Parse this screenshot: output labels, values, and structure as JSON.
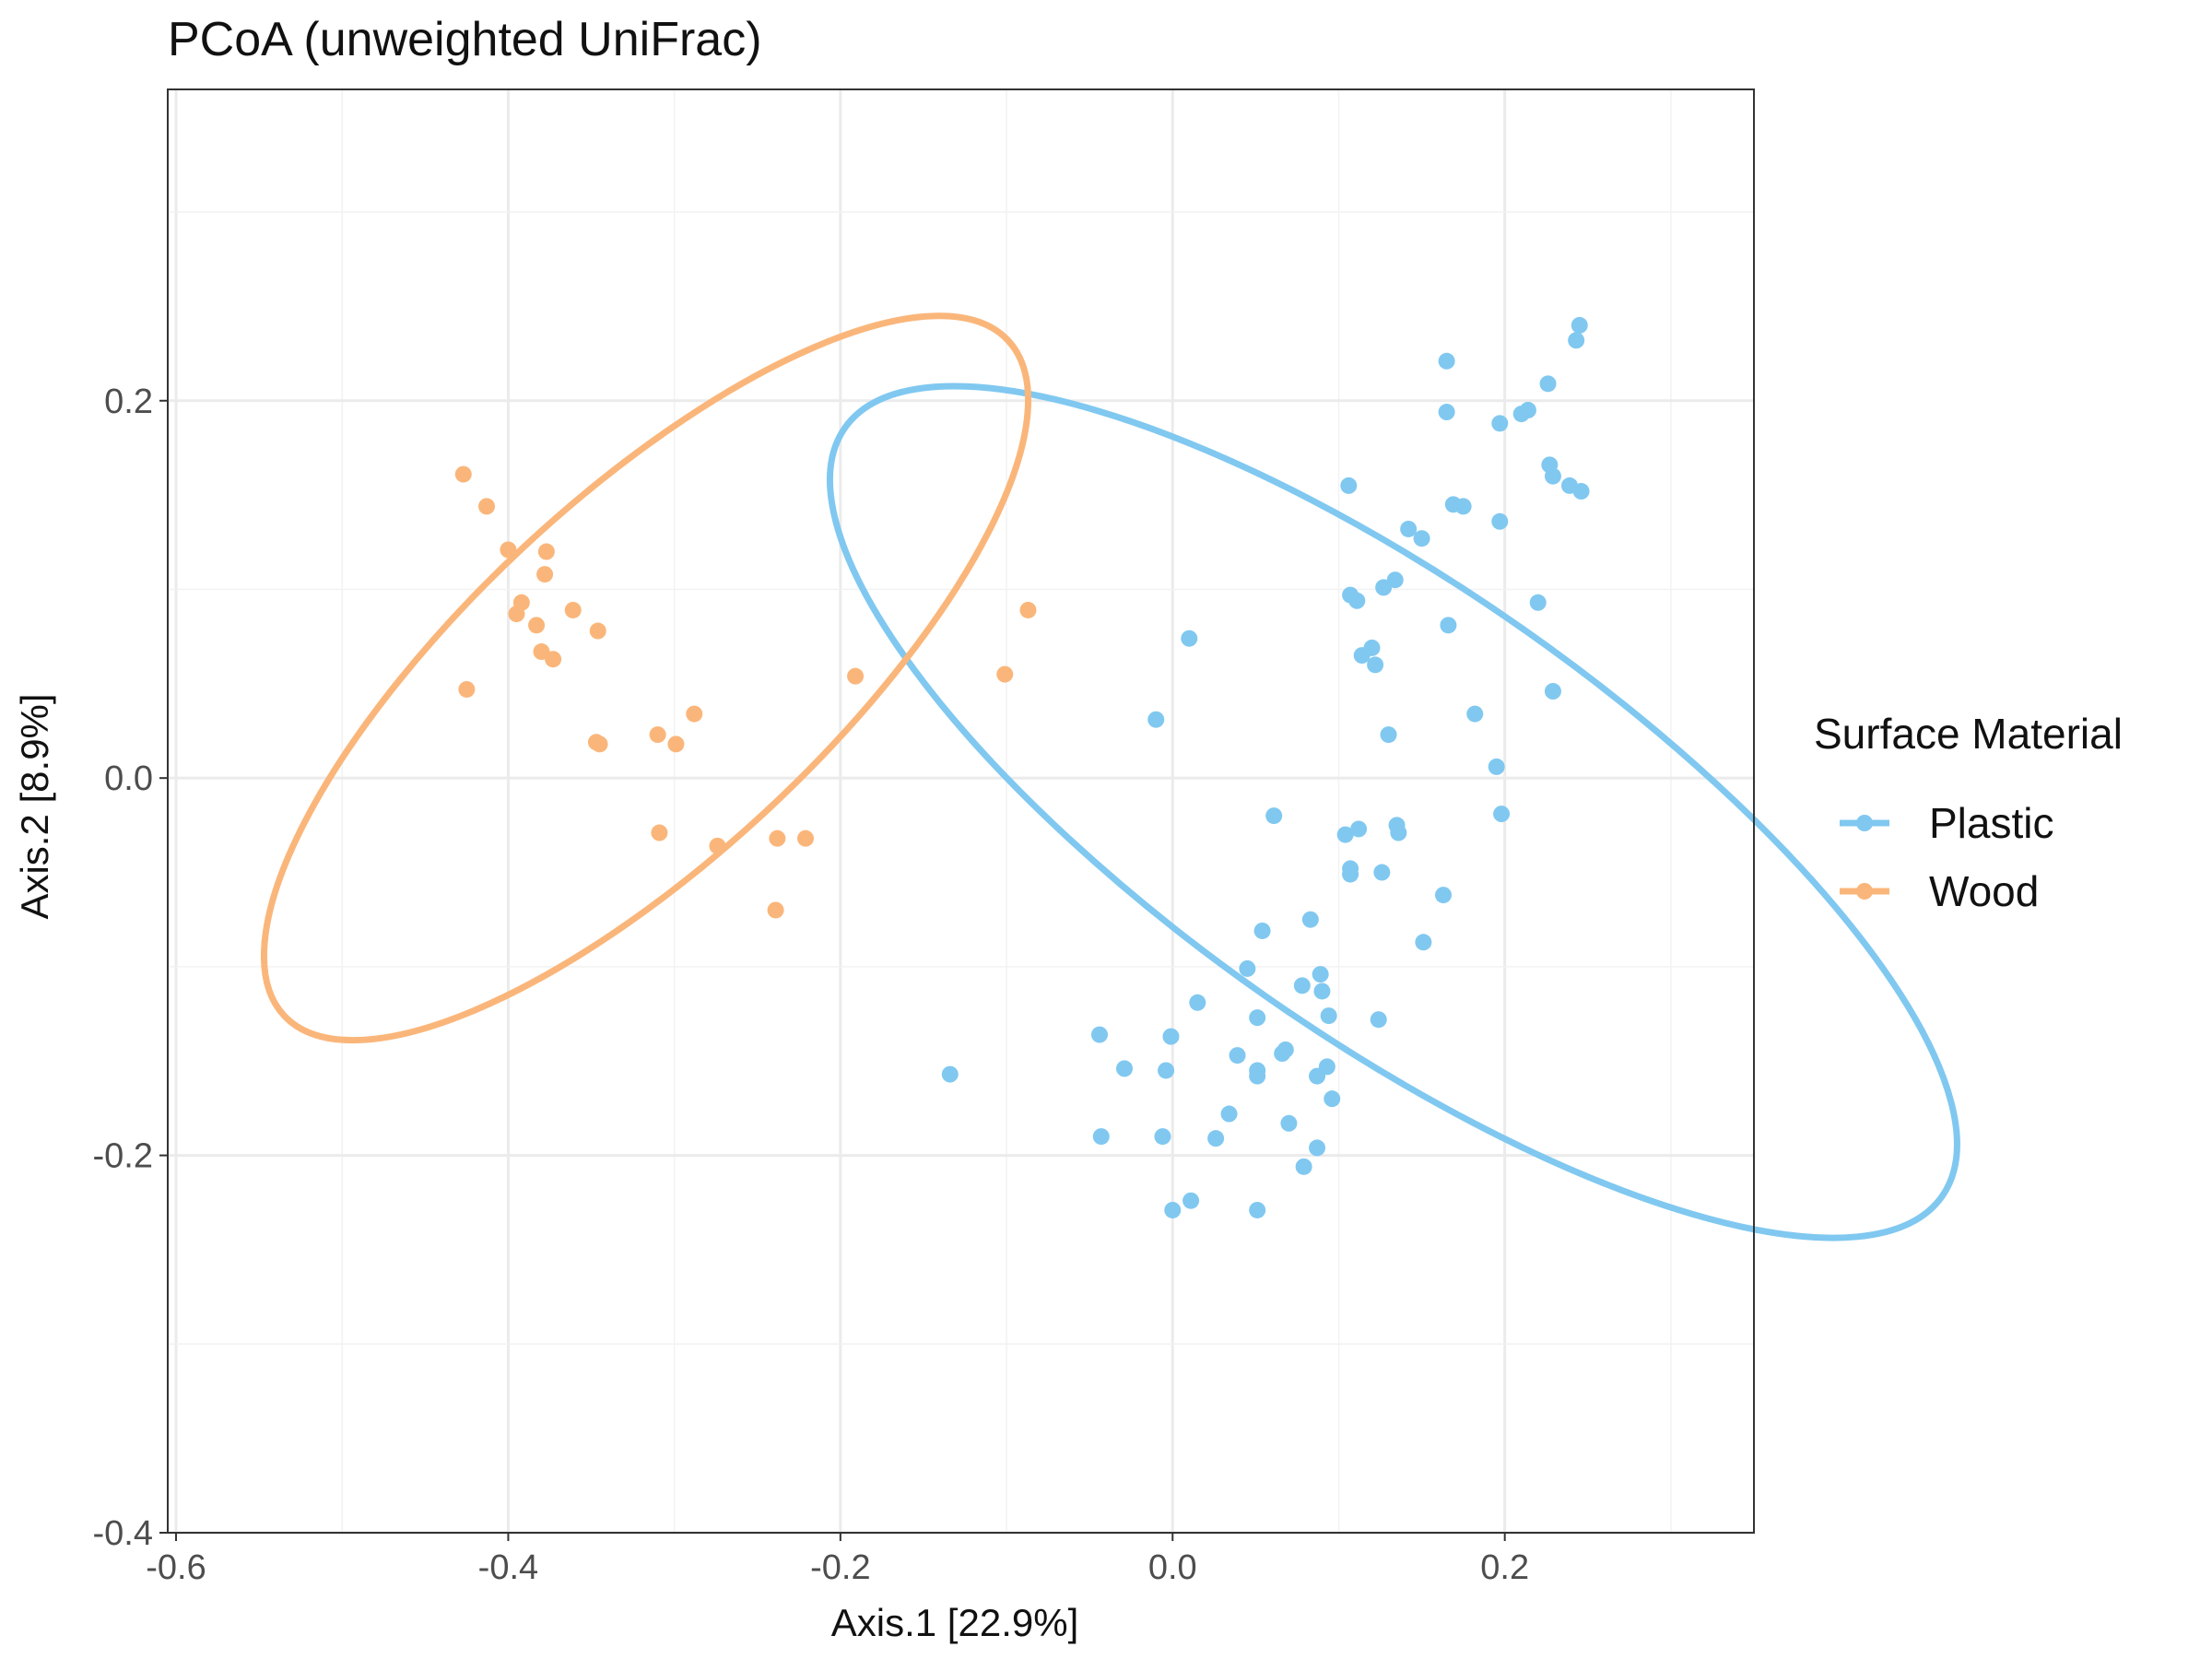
{
  "chart_data": {
    "type": "scatter",
    "title": "PCoA (unweighted UniFrac)",
    "xlabel": "Axis.1 [22.9%]",
    "ylabel": "Axis.2 [8.9%]",
    "xlim": [
      -0.605,
      0.35
    ],
    "ylim": [
      -0.4,
      0.365
    ],
    "xticks": [
      -0.6,
      -0.4,
      -0.2,
      0.0,
      0.2
    ],
    "xtick_labels": [
      "-0.6",
      "-0.4",
      "-0.2",
      "0.0",
      "0.2"
    ],
    "yticks": [
      -0.4,
      -0.2,
      0.0,
      0.2
    ],
    "ytick_labels": [
      "-0.4",
      "-0.2",
      "0.0",
      "0.2"
    ],
    "grid": true,
    "legend": {
      "title": "Surface Material",
      "position": "right"
    },
    "series": [
      {
        "name": "Plastic",
        "color": "#80c8f0",
        "points": [
          [
            0.165,
            0.221
          ],
          [
            0.245,
            0.24
          ],
          [
            0.243,
            0.232
          ],
          [
            0.226,
            0.209
          ],
          [
            0.165,
            0.194
          ],
          [
            0.197,
            0.188
          ],
          [
            0.21,
            0.193
          ],
          [
            0.214,
            0.195
          ],
          [
            0.227,
            0.166
          ],
          [
            0.229,
            0.16
          ],
          [
            0.239,
            0.155
          ],
          [
            0.246,
            0.152
          ],
          [
            0.106,
            0.155
          ],
          [
            0.169,
            0.145
          ],
          [
            0.175,
            0.144
          ],
          [
            0.197,
            0.136
          ],
          [
            0.142,
            0.132
          ],
          [
            0.15,
            0.127
          ],
          [
            0.134,
            0.105
          ],
          [
            0.127,
            0.101
          ],
          [
            0.107,
            0.097
          ],
          [
            0.111,
            0.094
          ],
          [
            0.22,
            0.093
          ],
          [
            0.166,
            0.081
          ],
          [
            0.01,
            0.074
          ],
          [
            0.12,
            0.069
          ],
          [
            0.114,
            0.065
          ],
          [
            0.122,
            0.06
          ],
          [
            0.229,
            0.046
          ],
          [
            0.182,
            0.034
          ],
          [
            -0.01,
            0.031
          ],
          [
            0.13,
            0.023
          ],
          [
            0.195,
            0.006
          ],
          [
            0.061,
            -0.02
          ],
          [
            0.198,
            -0.019
          ],
          [
            0.112,
            -0.027
          ],
          [
            0.104,
            -0.03
          ],
          [
            0.135,
            -0.025
          ],
          [
            0.136,
            -0.029
          ],
          [
            0.107,
            -0.048
          ],
          [
            0.107,
            -0.051
          ],
          [
            0.126,
            -0.05
          ],
          [
            0.163,
            -0.062
          ],
          [
            0.083,
            -0.075
          ],
          [
            0.054,
            -0.081
          ],
          [
            0.151,
            -0.087
          ],
          [
            0.045,
            -0.101
          ],
          [
            0.089,
            -0.104
          ],
          [
            0.078,
            -0.11
          ],
          [
            0.09,
            -0.113
          ],
          [
            0.015,
            -0.119
          ],
          [
            0.094,
            -0.126
          ],
          [
            0.124,
            -0.128
          ],
          [
            0.051,
            -0.127
          ],
          [
            -0.044,
            -0.136
          ],
          [
            -0.001,
            -0.137
          ],
          [
            0.068,
            -0.144
          ],
          [
            0.066,
            -0.146
          ],
          [
            0.039,
            -0.147
          ],
          [
            -0.029,
            -0.154
          ],
          [
            -0.004,
            -0.155
          ],
          [
            0.093,
            -0.153
          ],
          [
            0.051,
            -0.155
          ],
          [
            0.051,
            -0.158
          ],
          [
            0.087,
            -0.158
          ],
          [
            -0.134,
            -0.157
          ],
          [
            0.096,
            -0.17
          ],
          [
            0.034,
            -0.178
          ],
          [
            0.07,
            -0.183
          ],
          [
            -0.043,
            -0.19
          ],
          [
            -0.006,
            -0.19
          ],
          [
            0.026,
            -0.191
          ],
          [
            0.087,
            -0.196
          ],
          [
            0.079,
            -0.206
          ],
          [
            0.011,
            -0.224
          ],
          [
            0.0,
            -0.229
          ],
          [
            0.051,
            -0.229
          ]
        ]
      },
      {
        "name": "Wood",
        "color": "#fab67a",
        "points": [
          [
            -0.427,
            0.161
          ],
          [
            -0.413,
            0.144
          ],
          [
            -0.4,
            0.121
          ],
          [
            -0.377,
            0.12
          ],
          [
            -0.378,
            0.108
          ],
          [
            -0.392,
            0.093
          ],
          [
            -0.395,
            0.087
          ],
          [
            -0.361,
            0.089
          ],
          [
            -0.383,
            0.081
          ],
          [
            -0.346,
            0.078
          ],
          [
            -0.087,
            0.089
          ],
          [
            -0.38,
            0.067
          ],
          [
            -0.373,
            0.063
          ],
          [
            -0.101,
            0.055
          ],
          [
            -0.191,
            0.054
          ],
          [
            -0.425,
            0.047
          ],
          [
            -0.288,
            0.034
          ],
          [
            -0.31,
            0.023
          ],
          [
            -0.347,
            0.019
          ],
          [
            -0.345,
            0.018
          ],
          [
            -0.299,
            0.018
          ],
          [
            -0.309,
            -0.029
          ],
          [
            -0.238,
            -0.032
          ],
          [
            -0.221,
            -0.032
          ],
          [
            -0.274,
            -0.036
          ],
          [
            -0.239,
            -0.07
          ]
        ]
      }
    ],
    "ellipses": [
      {
        "name": "Plastic",
        "center": [
          0.133,
          -0.018
        ],
        "rx": 0.135,
        "ry": 0.355,
        "rotation_deg": 55
      },
      {
        "name": "Wood",
        "center": [
          -0.317,
          0.053
        ],
        "rx": 0.298,
        "ry": 0.095,
        "rotation_deg": 43
      }
    ]
  }
}
